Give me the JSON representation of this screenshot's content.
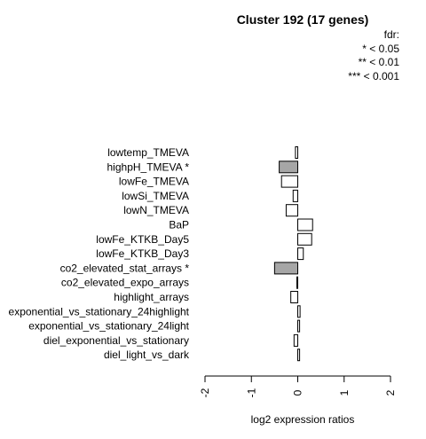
{
  "chart_data": {
    "type": "bar",
    "orientation": "horizontal",
    "title": "Cluster 192 (17 genes)",
    "xlabel": "log2 expression ratios",
    "ylabel": "",
    "xlim": [
      -2,
      2
    ],
    "xticks": [
      "-2",
      "-1",
      "0",
      "1",
      "2"
    ],
    "legend": {
      "title": "fdr:",
      "entries": [
        "* < 0.05",
        "** < 0.01",
        "*** < 0.001"
      ],
      "placement": "top-right"
    },
    "significant_color": "#a6a6a6",
    "default_color": "#ffffff",
    "categories": [
      "lowtemp_TMEVA",
      "highpH_TMEVA *",
      "lowFe_TMEVA",
      "lowSi_TMEVA",
      "lowN_TMEVA",
      "BaP",
      "lowFe_KTKB_Day5",
      "lowFe_KTKB_Day3",
      "co2_elevated_stat_arrays *",
      "co2_elevated_expo_arrays",
      "highlight_arrays",
      "exponential_vs_stationary_24highlight",
      "exponential_vs_stationary_24light",
      "diel_exponential_vs_stationary",
      "diel_light_vs_dark"
    ],
    "values": [
      -0.05,
      -0.4,
      -0.35,
      -0.1,
      -0.25,
      0.32,
      0.3,
      0.12,
      -0.5,
      -0.02,
      -0.15,
      0.05,
      0.04,
      -0.08,
      0.04
    ],
    "significant": [
      false,
      true,
      false,
      false,
      false,
      false,
      false,
      false,
      true,
      false,
      false,
      false,
      false,
      false,
      false
    ]
  }
}
